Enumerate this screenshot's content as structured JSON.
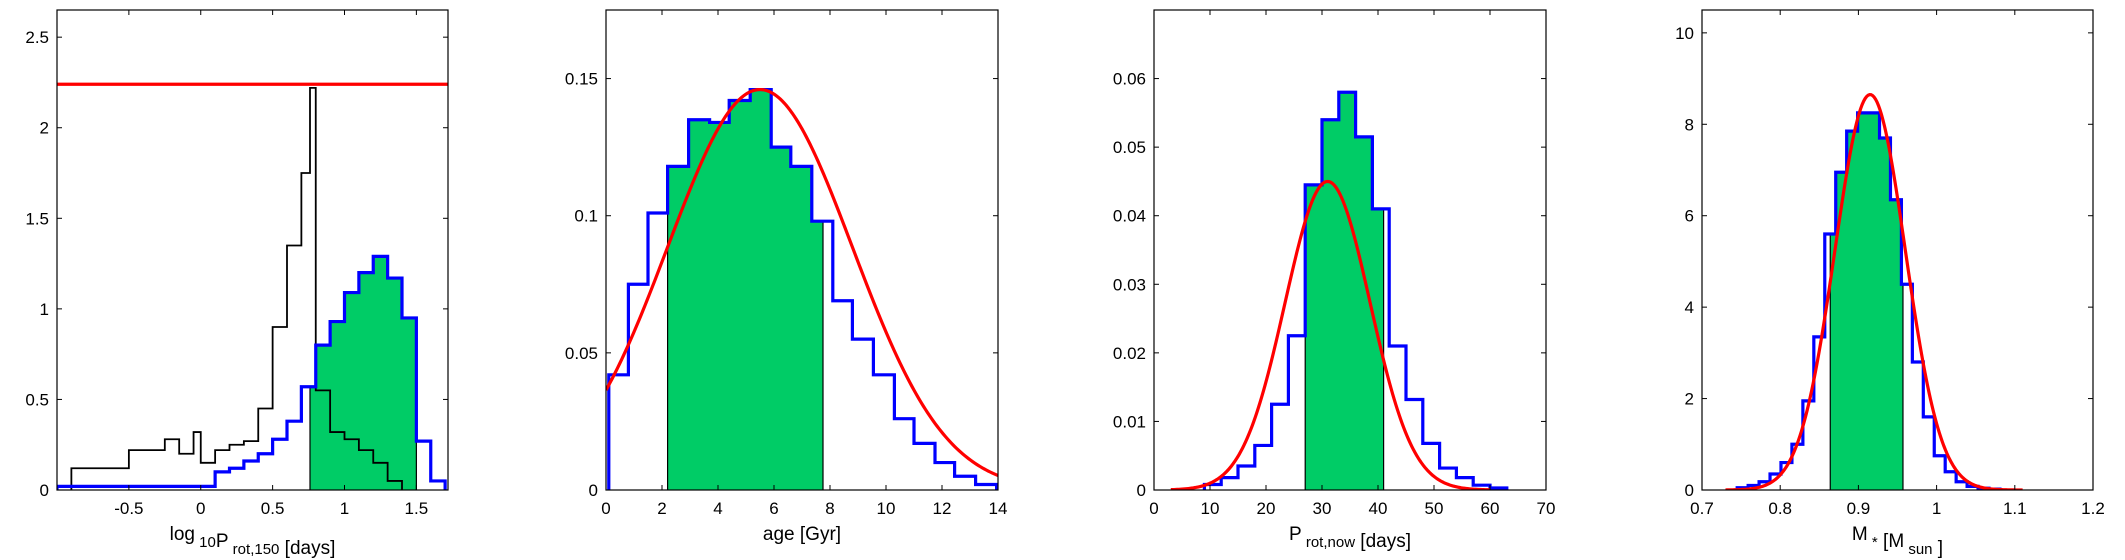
{
  "colors": {
    "hist_line": "#0000ff",
    "fill": "#00cc66",
    "fit": "#ff0000",
    "prior": "#000000",
    "axis": "#000000"
  },
  "chart_data": [
    {
      "type": "histogram",
      "xlabel": {
        "pre": "log",
        "sub1": "10",
        "mid": "P",
        "sub2": "rot,150",
        "post": "  [days]"
      },
      "xlim": [
        -1.0,
        1.72
      ],
      "ylim": [
        0,
        2.65
      ],
      "xticks": [
        -0.5,
        0,
        0.5,
        1,
        1.5
      ],
      "xtick_labels": [
        "-0.5",
        "0",
        "0.5",
        "1",
        "1.5"
      ],
      "yticks": [
        0,
        0.5,
        1,
        1.5,
        2,
        2.5
      ],
      "ytick_labels": [
        "0",
        "0.5",
        "1",
        "1.5",
        "2",
        "2.5"
      ],
      "hline": 2.24,
      "blue_hist": {
        "edges": [
          -1.0,
          0.1,
          0.2,
          0.3,
          0.4,
          0.5,
          0.6,
          0.7,
          0.8,
          0.9,
          1.0,
          1.1,
          1.2,
          1.3,
          1.4,
          1.5,
          1.6,
          1.7
        ],
        "values": [
          0.02,
          0.1,
          0.12,
          0.16,
          0.2,
          0.28,
          0.38,
          0.57,
          0.8,
          0.93,
          1.09,
          1.2,
          1.29,
          1.17,
          0.95,
          0.27,
          0.05
        ]
      },
      "black_hist": {
        "edges": [
          -0.9,
          -0.5,
          -0.25,
          -0.15,
          -0.05,
          0.0,
          0.1,
          0.2,
          0.3,
          0.4,
          0.5,
          0.6,
          0.7,
          0.76,
          0.8,
          0.9,
          1.0,
          1.1,
          1.2,
          1.3,
          1.4
        ],
        "values": [
          0.12,
          0.22,
          0.28,
          0.2,
          0.32,
          0.15,
          0.22,
          0.25,
          0.27,
          0.45,
          0.9,
          1.35,
          1.75,
          2.22,
          0.55,
          0.32,
          0.28,
          0.22,
          0.15,
          0.05
        ]
      },
      "shade": [
        0.76,
        1.5
      ],
      "fit": null
    },
    {
      "type": "histogram",
      "xlabel": {
        "pre": "age [Gyr]",
        "sub1": "",
        "mid": "",
        "sub2": "",
        "post": ""
      },
      "xlim": [
        0,
        14
      ],
      "ylim": [
        0,
        0.175
      ],
      "xticks": [
        0,
        2,
        4,
        6,
        8,
        10,
        12,
        14
      ],
      "xtick_labels": [
        "0",
        "2",
        "4",
        "6",
        "8",
        "10",
        "12",
        "14"
      ],
      "yticks": [
        0,
        0.05,
        0.1,
        0.15
      ],
      "ytick_labels": [
        "0",
        "0.05",
        "0.1",
        "0.15"
      ],
      "hline": null,
      "blue_hist": {
        "edges": [
          0.1,
          0.8,
          1.5,
          2.2,
          2.95,
          3.7,
          4.4,
          5.15,
          5.9,
          6.6,
          7.35,
          8.1,
          8.8,
          9.55,
          10.3,
          11.0,
          11.75,
          12.45,
          13.2,
          13.95
        ],
        "values": [
          0.042,
          0.075,
          0.101,
          0.118,
          0.135,
          0.134,
          0.142,
          0.146,
          0.125,
          0.118,
          0.098,
          0.069,
          0.055,
          0.042,
          0.026,
          0.017,
          0.01,
          0.005,
          0.002
        ]
      },
      "black_hist": null,
      "shade": [
        2.2,
        7.75
      ],
      "fit": {
        "kind": "gauss",
        "amp": 0.146,
        "mu": 5.5,
        "sigma": 3.3,
        "from": 0.0,
        "to": 14.0
      }
    },
    {
      "type": "histogram",
      "xlabel": {
        "pre": "",
        "sub1": "",
        "mid": "P",
        "sub2": "rot,now",
        "post": "  [days]"
      },
      "xlim": [
        0,
        70
      ],
      "ylim": [
        0,
        0.07
      ],
      "xticks": [
        0,
        10,
        20,
        30,
        40,
        50,
        60,
        70
      ],
      "xtick_labels": [
        "0",
        "10",
        "20",
        "30",
        "40",
        "50",
        "60",
        "70"
      ],
      "yticks": [
        0,
        0.01,
        0.02,
        0.03,
        0.04,
        0.05,
        0.06
      ],
      "ytick_labels": [
        "0",
        "0.01",
        "0.02",
        "0.03",
        "0.04",
        "0.05",
        "0.06"
      ],
      "hline": null,
      "blue_hist": {
        "edges": [
          9.0,
          12.0,
          15.0,
          18.0,
          21.0,
          24.0,
          27.0,
          30.0,
          33.0,
          36.0,
          39.0,
          42.0,
          45.0,
          48.0,
          51.0,
          54.0,
          57.0,
          60.0,
          63.0
        ],
        "values": [
          0.0008,
          0.0018,
          0.0035,
          0.0065,
          0.0125,
          0.0225,
          0.0445,
          0.054,
          0.058,
          0.0515,
          0.041,
          0.021,
          0.0132,
          0.0068,
          0.0032,
          0.0018,
          0.0007,
          0.0003
        ]
      },
      "black_hist": null,
      "shade": [
        27.0,
        41.0
      ],
      "fit": {
        "kind": "gauss",
        "amp": 0.045,
        "mu": 31.0,
        "sigma": 7.6,
        "from": 3.0,
        "to": 60.0
      }
    },
    {
      "type": "histogram",
      "xlabel": {
        "pre": "",
        "sub1": "",
        "mid": "M",
        "sub2": "*",
        "post": " [M",
        "sub3": "sun",
        "post2": " ]"
      },
      "xlim": [
        0.7,
        1.2
      ],
      "ylim": [
        0,
        10.5
      ],
      "xticks": [
        0.7,
        0.8,
        0.9,
        1.0,
        1.1,
        1.2
      ],
      "xtick_labels": [
        "0.7",
        "0.8",
        "0.9",
        "1",
        "1.1",
        "1.2"
      ],
      "yticks": [
        0,
        2,
        4,
        6,
        8,
        10
      ],
      "ytick_labels": [
        "0",
        "2",
        "4",
        "6",
        "8",
        "10"
      ],
      "hline": null,
      "blue_hist": {
        "edges": [
          0.745,
          0.759,
          0.773,
          0.787,
          0.801,
          0.815,
          0.829,
          0.843,
          0.857,
          0.871,
          0.885,
          0.899,
          0.913,
          0.927,
          0.941,
          0.955,
          0.969,
          0.983,
          0.997,
          1.011,
          1.025,
          1.039,
          1.053,
          1.067,
          1.081
        ],
        "values": [
          0.05,
          0.1,
          0.18,
          0.35,
          0.6,
          1.0,
          1.95,
          3.35,
          5.6,
          6.95,
          7.85,
          8.25,
          8.25,
          7.7,
          6.35,
          4.5,
          2.8,
          1.6,
          0.75,
          0.4,
          0.18,
          0.08,
          0.04,
          0.02
        ]
      },
      "black_hist": null,
      "shade": [
        0.864,
        0.957
      ],
      "fit": {
        "kind": "gauss",
        "amp": 8.65,
        "mu": 0.915,
        "sigma": 0.045,
        "from": 0.73,
        "to": 1.11
      }
    }
  ]
}
